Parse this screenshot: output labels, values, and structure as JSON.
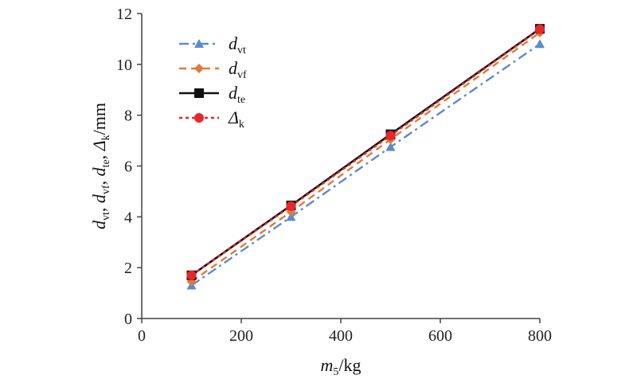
{
  "chart_data": {
    "type": "line",
    "x": [
      100,
      300,
      500,
      800
    ],
    "xlabel": {
      "main": "m",
      "sub": "5",
      "suffix": "/kg"
    },
    "ylabel": [
      {
        "main": "d",
        "sub": "vt",
        "suffix": ", "
      },
      {
        "main": "d",
        "sub": "vf",
        "suffix": ", "
      },
      {
        "main": "d",
        "sub": "te",
        "suffix": ", "
      },
      {
        "main": "Δ",
        "sub": "k",
        "suffix": "/mm"
      }
    ],
    "xlim": [
      0,
      800
    ],
    "ylim": [
      0,
      12
    ],
    "xticks": [
      0,
      200,
      400,
      600,
      800
    ],
    "yticks": [
      0,
      2,
      4,
      6,
      8,
      10,
      12
    ],
    "grid": false,
    "legend_position": "top-left",
    "series": [
      {
        "name": "d",
        "name_sub": "vt",
        "values": [
          1.3,
          4.0,
          6.75,
          10.8
        ],
        "color": "#5B8ACF",
        "dash": "12,5,3,5",
        "marker": "triangle"
      },
      {
        "name": "d",
        "name_sub": "vf",
        "values": [
          1.45,
          4.2,
          7.05,
          11.25
        ],
        "color": "#E07B39",
        "dash": "9,6",
        "marker": "diamond"
      },
      {
        "name": "d",
        "name_sub": "te",
        "values": [
          1.7,
          4.45,
          7.25,
          11.4
        ],
        "color": "#111111",
        "dash": "",
        "marker": "square"
      },
      {
        "name": "Δ",
        "name_sub": "k",
        "values": [
          1.7,
          4.42,
          7.2,
          11.38
        ],
        "color": "#E8262C",
        "dash": "4,4",
        "marker": "circle"
      }
    ]
  }
}
